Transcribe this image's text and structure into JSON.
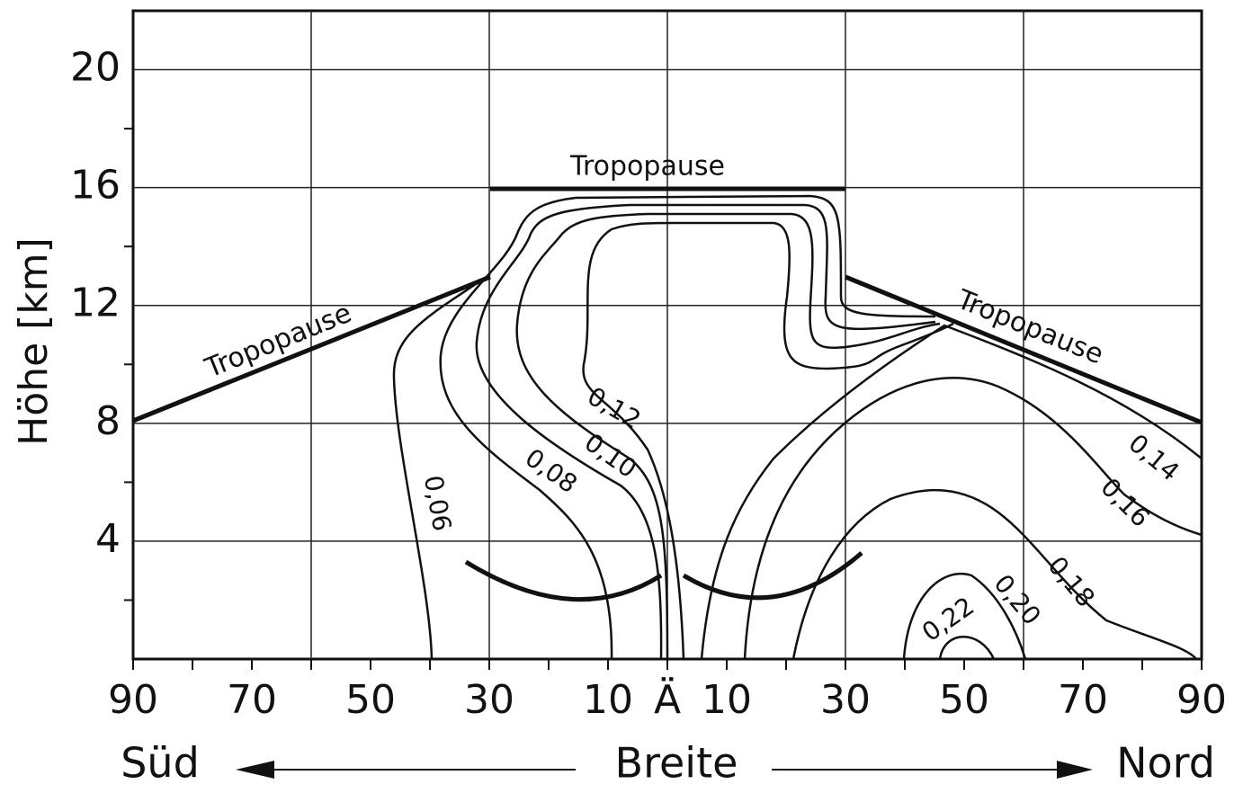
{
  "chart_data": {
    "type": "contour",
    "ylabel": "Höhe [km]",
    "xlabel": "Breite",
    "x_left_label": "Süd",
    "x_right_label": "Nord",
    "xlim": [
      -90,
      90
    ],
    "xticks": [
      {
        "value": -90,
        "label": "90"
      },
      {
        "value": -70,
        "label": "70"
      },
      {
        "value": -50,
        "label": "50"
      },
      {
        "value": -30,
        "label": "30"
      },
      {
        "value": -10,
        "label": "10"
      },
      {
        "value": 0,
        "label": "Ä"
      },
      10,
      30,
      50,
      70,
      90
    ],
    "xminorticks": [
      -80,
      -60,
      -40,
      -20,
      20,
      40,
      60,
      80
    ],
    "xgrid": [
      -60,
      -30,
      0,
      30,
      60
    ],
    "ylim": [
      0,
      22
    ],
    "yticks": [
      4,
      8,
      12,
      16,
      20
    ],
    "yminorticks": [
      2,
      6,
      10,
      14,
      18
    ],
    "grid": true,
    "tropopause_labels": [
      "Tropopause",
      "Tropopause",
      "Tropopause"
    ],
    "contour_labels": [
      "0,06",
      "0,08",
      "0,10",
      "0,12",
      "0,14",
      "0,16",
      "0,18",
      "0,20",
      "0,22"
    ]
  }
}
